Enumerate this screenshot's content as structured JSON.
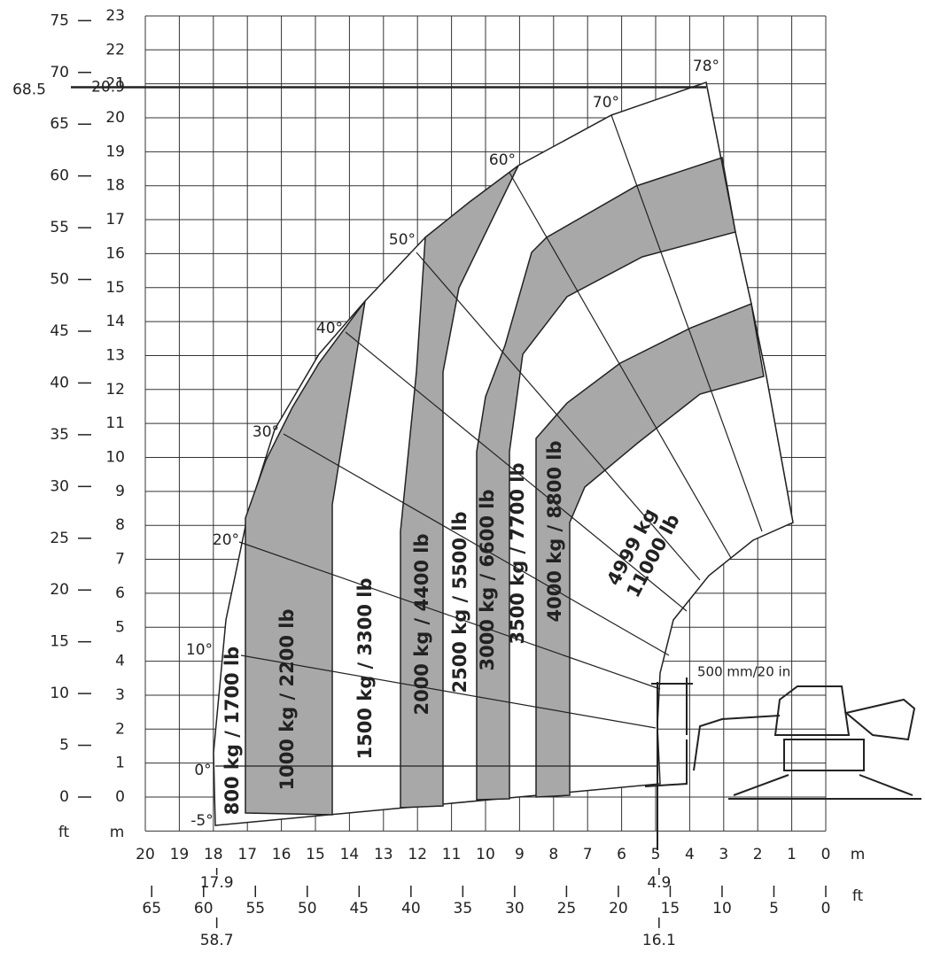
{
  "axes": {
    "m_unit": "m",
    "ft_unit": "ft",
    "y_m_ticks": [
      0,
      1,
      2,
      3,
      4,
      5,
      6,
      7,
      8,
      9,
      10,
      11,
      12,
      13,
      14,
      15,
      16,
      17,
      18,
      19,
      20,
      21,
      22,
      23
    ],
    "y_ft_ticks": [
      0,
      5,
      10,
      15,
      20,
      25,
      30,
      35,
      40,
      45,
      50,
      55,
      60,
      65,
      70,
      75
    ],
    "x_m_ticks": [
      20,
      19,
      18,
      17,
      16,
      15,
      14,
      13,
      12,
      11,
      10,
      9,
      8,
      7,
      6,
      5,
      4,
      3,
      2,
      1,
      0
    ],
    "x_ft_ticks": [
      65,
      60,
      55,
      50,
      45,
      40,
      35,
      30,
      25,
      20,
      15,
      10,
      5,
      0
    ],
    "max_height": {
      "m": 20.9,
      "ft": 68.5
    },
    "reach_marks": [
      {
        "m": 17.9,
        "ft": 58.7
      },
      {
        "m": 4.9,
        "ft": 16.1
      }
    ]
  },
  "angles": [
    "78°",
    "70°",
    "60°",
    "50°",
    "40°",
    "30°",
    "20°",
    "10°",
    "0°",
    "-5°"
  ],
  "zones": [
    "800 kg / 1700 lb",
    "1000 kg / 2200 lb",
    "1500 kg / 3300 lb",
    "2000 kg / 4400 lb",
    "2500 kg / 5500 lb",
    "3000 kg / 6600 lb",
    "3500 kg / 7700 lb",
    "4000 kg / 8800 lb"
  ],
  "max_zone": [
    "4999 kg",
    "11000 lb"
  ],
  "clearance": "500 mm/20 in"
}
